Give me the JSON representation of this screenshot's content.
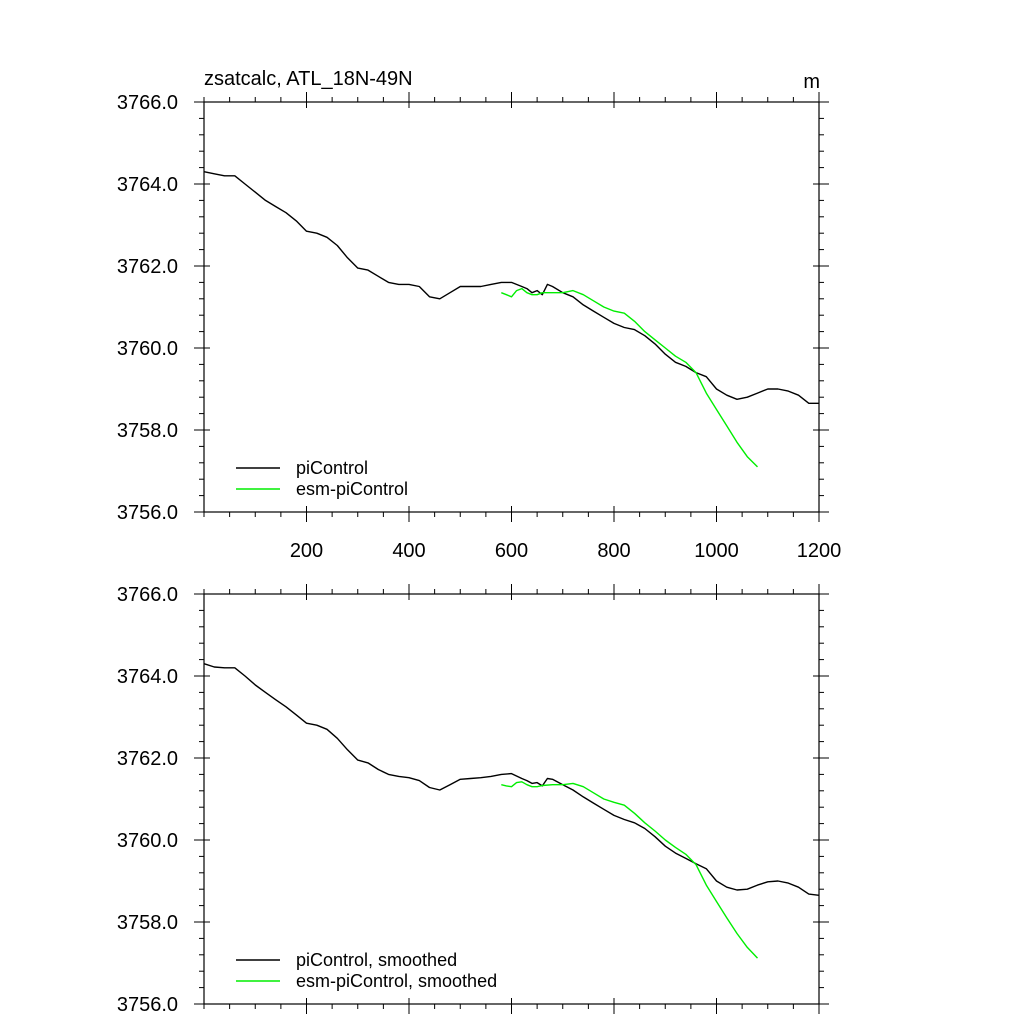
{
  "chart_data": [
    {
      "type": "line",
      "title": "zsatcalc, ATL_18N-49N",
      "units": "m",
      "xlabel": "",
      "ylabel": "",
      "xlim": [
        0,
        1200
      ],
      "ylim": [
        3756,
        3766
      ],
      "x_ticks": [
        200,
        400,
        600,
        800,
        1000,
        1200
      ],
      "x_tick_labels": [
        "200",
        "400",
        "600",
        "800",
        "1000",
        "1200"
      ],
      "y_ticks": [
        3756,
        3758,
        3760,
        3762,
        3764,
        3766
      ],
      "y_tick_labels": [
        "3756.0",
        "3758.0",
        "3760.0",
        "3762.0",
        "3764.0",
        "3766.0"
      ],
      "legend_position": "bottom-left",
      "series": [
        {
          "name": "piControl",
          "color": "#000000",
          "x": [
            0,
            20,
            40,
            60,
            80,
            100,
            120,
            140,
            160,
            180,
            200,
            220,
            240,
            260,
            280,
            300,
            320,
            340,
            360,
            380,
            400,
            420,
            440,
            460,
            480,
            500,
            520,
            540,
            560,
            580,
            600,
            620,
            630,
            640,
            650,
            660,
            670,
            680,
            700,
            720,
            740,
            760,
            780,
            800,
            820,
            840,
            860,
            880,
            900,
            920,
            940,
            960,
            980,
            1000,
            1020,
            1040,
            1060,
            1080,
            1100,
            1120,
            1140,
            1160,
            1180,
            1200
          ],
          "values": [
            3764.3,
            3764.25,
            3764.2,
            3764.2,
            3764.0,
            3763.8,
            3763.6,
            3763.45,
            3763.3,
            3763.1,
            3762.85,
            3762.8,
            3762.7,
            3762.5,
            3762.2,
            3761.95,
            3761.9,
            3761.75,
            3761.6,
            3761.55,
            3761.55,
            3761.5,
            3761.25,
            3761.2,
            3761.35,
            3761.5,
            3761.5,
            3761.5,
            3761.55,
            3761.6,
            3761.6,
            3761.5,
            3761.45,
            3761.35,
            3761.4,
            3761.3,
            3761.55,
            3761.5,
            3761.35,
            3761.25,
            3761.05,
            3760.9,
            3760.75,
            3760.6,
            3760.5,
            3760.45,
            3760.3,
            3760.1,
            3759.85,
            3759.65,
            3759.55,
            3759.4,
            3759.3,
            3759.0,
            3758.85,
            3758.75,
            3758.8,
            3758.9,
            3759.0,
            3759.0,
            3758.95,
            3758.85,
            3758.65,
            3758.65
          ]
        },
        {
          "name": "esm-piControl",
          "color": "#00ee00",
          "x": [
            580,
            590,
            600,
            610,
            620,
            630,
            640,
            650,
            660,
            680,
            700,
            720,
            740,
            760,
            780,
            800,
            820,
            840,
            860,
            880,
            900,
            920,
            940,
            960,
            980,
            1000,
            1020,
            1040,
            1060,
            1080
          ],
          "values": [
            3761.35,
            3761.3,
            3761.25,
            3761.4,
            3761.45,
            3761.35,
            3761.3,
            3761.3,
            3761.35,
            3761.35,
            3761.35,
            3761.4,
            3761.3,
            3761.15,
            3761.0,
            3760.9,
            3760.85,
            3760.65,
            3760.4,
            3760.2,
            3760.0,
            3759.8,
            3759.65,
            3759.4,
            3758.9,
            3758.5,
            3758.1,
            3757.7,
            3757.35,
            3757.1
          ]
        }
      ]
    },
    {
      "type": "line",
      "title": "",
      "xlabel": "",
      "ylabel": "",
      "xlim": [
        0,
        1200
      ],
      "ylim": [
        3756,
        3766
      ],
      "x_ticks": [
        200,
        400,
        600,
        800,
        1000,
        1200
      ],
      "y_ticks": [
        3756,
        3758,
        3760,
        3762,
        3764,
        3766
      ],
      "y_tick_labels": [
        "3756.0",
        "3758.0",
        "3760.0",
        "3762.0",
        "3764.0",
        "3766.0"
      ],
      "legend_position": "bottom-left",
      "series": [
        {
          "name": "piControl, smoothed",
          "color": "#000000",
          "x": [
            0,
            20,
            40,
            60,
            80,
            100,
            120,
            140,
            160,
            180,
            200,
            220,
            240,
            260,
            280,
            300,
            320,
            340,
            360,
            380,
            400,
            420,
            440,
            460,
            480,
            500,
            520,
            540,
            560,
            580,
            600,
            620,
            630,
            640,
            650,
            660,
            670,
            680,
            700,
            720,
            740,
            760,
            780,
            800,
            820,
            840,
            860,
            880,
            900,
            920,
            940,
            960,
            980,
            1000,
            1020,
            1040,
            1060,
            1080,
            1100,
            1120,
            1140,
            1160,
            1180,
            1200
          ],
          "values": [
            3764.3,
            3764.22,
            3764.2,
            3764.2,
            3764.0,
            3763.78,
            3763.6,
            3763.42,
            3763.25,
            3763.05,
            3762.85,
            3762.8,
            3762.7,
            3762.48,
            3762.2,
            3761.95,
            3761.88,
            3761.72,
            3761.6,
            3761.55,
            3761.52,
            3761.45,
            3761.28,
            3761.22,
            3761.35,
            3761.48,
            3761.5,
            3761.52,
            3761.55,
            3761.6,
            3761.62,
            3761.5,
            3761.45,
            3761.38,
            3761.4,
            3761.32,
            3761.5,
            3761.48,
            3761.35,
            3761.22,
            3761.05,
            3760.9,
            3760.75,
            3760.6,
            3760.5,
            3760.42,
            3760.28,
            3760.08,
            3759.85,
            3759.68,
            3759.55,
            3759.42,
            3759.3,
            3759.0,
            3758.85,
            3758.78,
            3758.8,
            3758.9,
            3758.98,
            3759.0,
            3758.95,
            3758.85,
            3758.68,
            3758.65
          ]
        },
        {
          "name": "esm-piControl, smoothed",
          "color": "#00ee00",
          "x": [
            580,
            590,
            600,
            610,
            620,
            630,
            640,
            650,
            660,
            680,
            700,
            720,
            740,
            760,
            780,
            800,
            820,
            840,
            860,
            880,
            900,
            920,
            940,
            960,
            980,
            1000,
            1020,
            1040,
            1060,
            1080
          ],
          "values": [
            3761.35,
            3761.32,
            3761.3,
            3761.4,
            3761.42,
            3761.35,
            3761.3,
            3761.3,
            3761.33,
            3761.35,
            3761.35,
            3761.38,
            3761.3,
            3761.15,
            3761.0,
            3760.92,
            3760.85,
            3760.65,
            3760.42,
            3760.22,
            3760.0,
            3759.82,
            3759.65,
            3759.4,
            3758.9,
            3758.5,
            3758.1,
            3757.72,
            3757.38,
            3757.12
          ]
        }
      ]
    }
  ]
}
